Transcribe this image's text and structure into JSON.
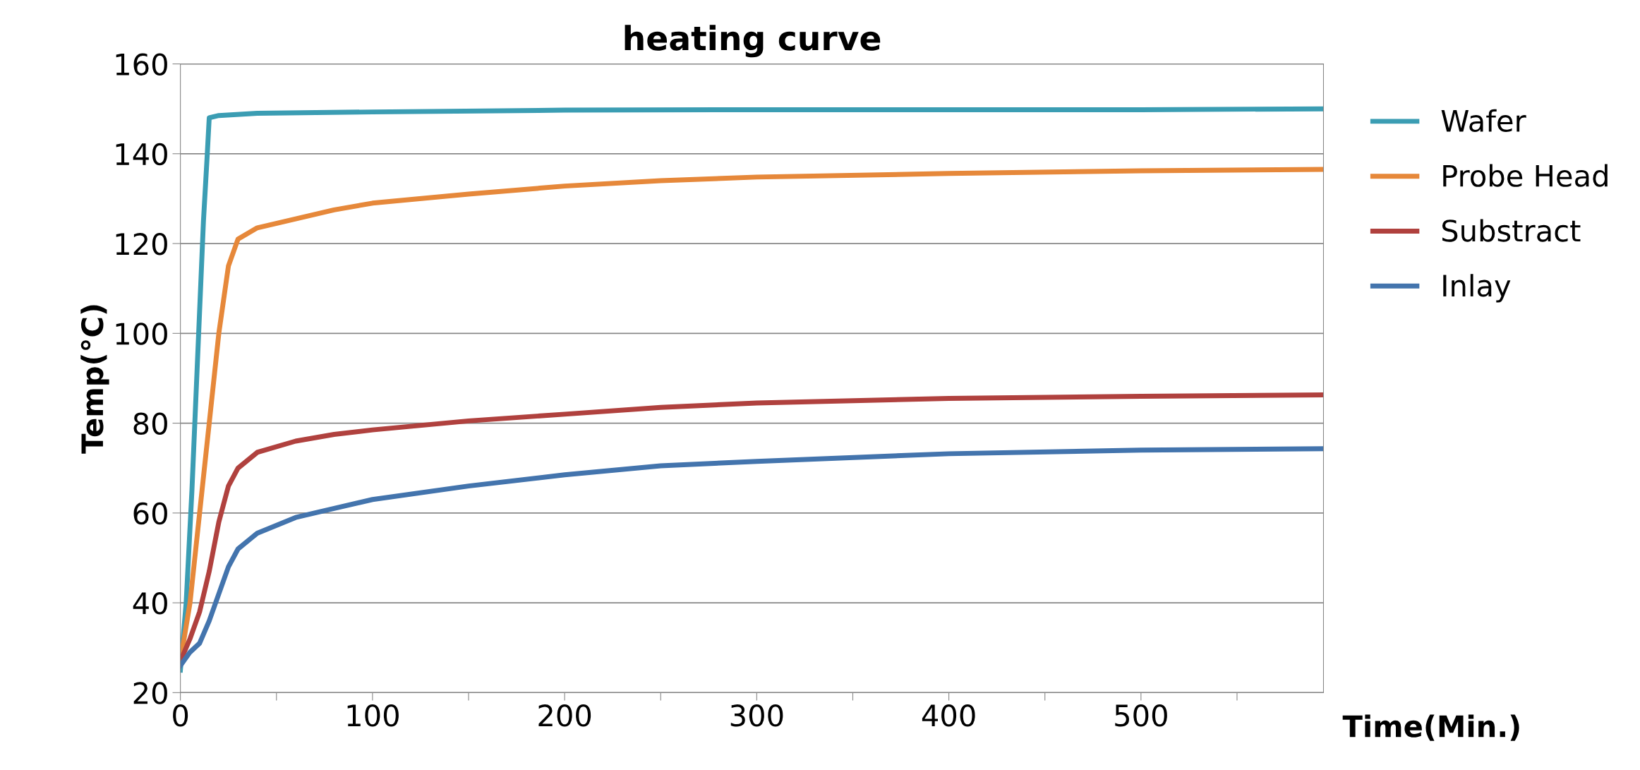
{
  "chart_data": {
    "type": "line",
    "title": "heating curve",
    "xlabel": "Time(Min.)",
    "ylabel": "Temp(°C)",
    "xlim": [
      0,
      595
    ],
    "xticks": [
      0,
      {
        "value": 50,
        "label": null
      },
      100,
      {
        "value": 150,
        "label": null
      },
      200,
      {
        "value": 250,
        "label": null
      },
      300,
      {
        "value": 350,
        "label": null
      },
      400,
      {
        "value": 450,
        "label": null
      },
      500,
      {
        "value": 550,
        "label": null
      }
    ],
    "ylim": [
      20,
      160
    ],
    "yticks": [
      20,
      40,
      60,
      80,
      100,
      120,
      140,
      160
    ],
    "grid": "y",
    "legend": "right",
    "marker": "none",
    "line_style": "solid",
    "series": [
      {
        "name": "Wafer",
        "color": "#3b9db3",
        "x": [
          0,
          3,
          6,
          9,
          12,
          14,
          15,
          20,
          40,
          100,
          200,
          300,
          400,
          500,
          595
        ],
        "values": [
          25,
          40,
          65,
          95,
          125,
          140,
          148,
          148.5,
          149,
          149.3,
          149.7,
          149.8,
          149.8,
          149.8,
          150
        ]
      },
      {
        "name": "Probe Head",
        "color": "#e6883a",
        "x": [
          0,
          5,
          10,
          15,
          20,
          25,
          30,
          40,
          60,
          80,
          100,
          150,
          200,
          250,
          300,
          400,
          500,
          595
        ],
        "values": [
          27,
          40,
          60,
          80,
          100,
          115,
          121,
          123.5,
          125.5,
          127.5,
          129,
          131,
          132.8,
          134,
          134.8,
          135.6,
          136.2,
          136.5
        ]
      },
      {
        "name": "Substract",
        "color": "#b0413e",
        "x": [
          0,
          5,
          10,
          15,
          20,
          25,
          30,
          40,
          60,
          80,
          100,
          150,
          200,
          250,
          300,
          400,
          500,
          595
        ],
        "values": [
          27,
          32,
          38,
          47,
          58,
          66,
          70,
          73.5,
          76,
          77.5,
          78.5,
          80.5,
          82,
          83.5,
          84.5,
          85.5,
          86,
          86.3
        ]
      },
      {
        "name": "Inlay",
        "color": "#4374ad",
        "x": [
          0,
          5,
          10,
          15,
          20,
          25,
          30,
          40,
          60,
          80,
          100,
          150,
          200,
          250,
          300,
          400,
          500,
          595
        ],
        "values": [
          26,
          29,
          31,
          36,
          42,
          48,
          52,
          55.5,
          59,
          61,
          63,
          66,
          68.5,
          70.5,
          71.5,
          73.2,
          74,
          74.3
        ]
      }
    ]
  }
}
